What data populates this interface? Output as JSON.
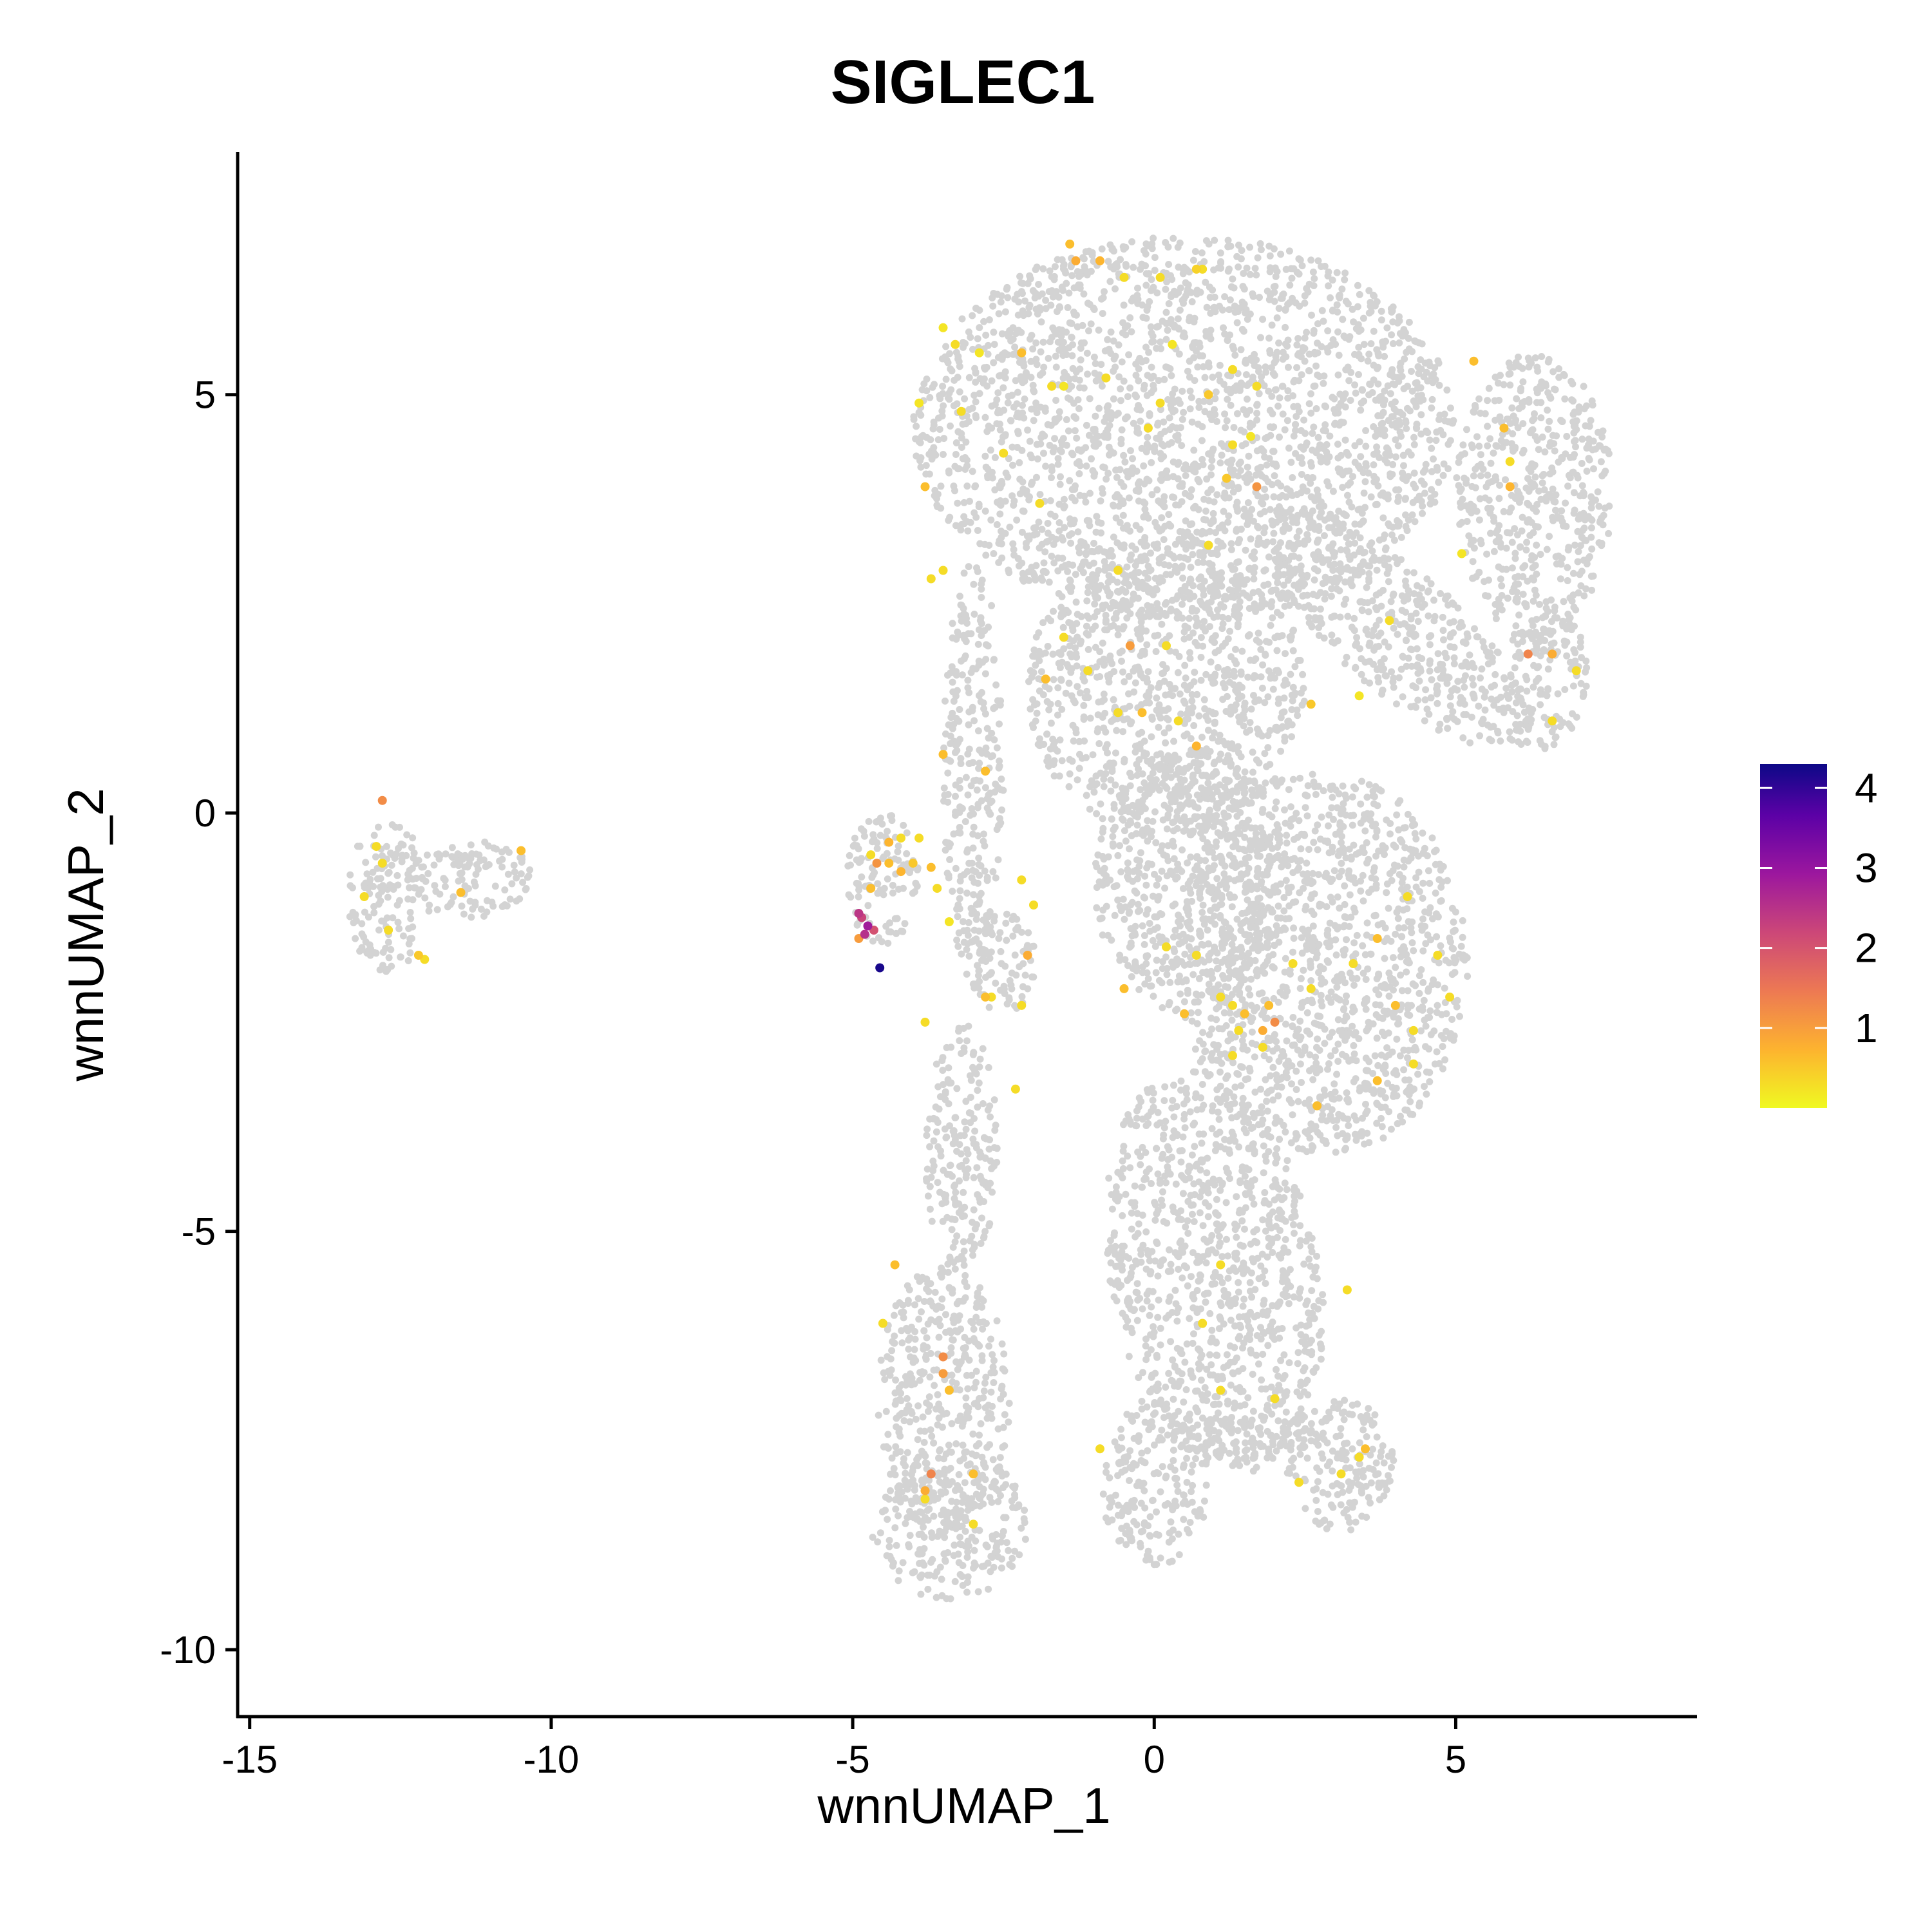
{
  "chart_data": {
    "type": "scatter",
    "title": "SIGLEC1",
    "xlabel": "wnnUMAP_1",
    "ylabel": "wnnUMAP_2",
    "xlim": [
      -15.2,
      9.0
    ],
    "ylim": [
      -10.8,
      7.9
    ],
    "x_ticks": [
      -15,
      -10,
      -5,
      0,
      5
    ],
    "x_tick_labels": [
      "-15",
      "-10",
      "-5",
      "0",
      "5"
    ],
    "y_ticks": [
      -10,
      -5,
      0,
      5
    ],
    "y_tick_labels": [
      "-10",
      "-5",
      "0",
      "5"
    ],
    "grid": false,
    "background_color": "#d3d3d3",
    "colorbar": {
      "range": [
        0,
        4.3
      ],
      "ticks": [
        1,
        2,
        3,
        4
      ],
      "tick_labels": [
        "1",
        "2",
        "3",
        "4"
      ],
      "colors": [
        "#f0f921",
        "#fdb32f",
        "#ed7953",
        "#cc4778",
        "#9c179e",
        "#5c01a6",
        "#0d0887"
      ],
      "placement": "right"
    },
    "clusters": [
      {
        "cx": 0.5,
        "cy": 4.6,
        "rx": 4.5,
        "ry": 2.3
      },
      {
        "cx": 6.3,
        "cy": 3.8,
        "rx": 1.3,
        "ry": 1.7
      },
      {
        "cx": 4.0,
        "cy": 2.2,
        "rx": 2.6,
        "ry": 0.8,
        "rot": -30
      },
      {
        "cx": 6.5,
        "cy": 1.6,
        "rx": 0.7,
        "ry": 0.9
      },
      {
        "cx": 0.2,
        "cy": 1.5,
        "rx": 2.3,
        "ry": 1.8
      },
      {
        "cx": 2.8,
        "cy": -1.8,
        "rx": 2.4,
        "ry": 2.3
      },
      {
        "cx": 0.6,
        "cy": -0.8,
        "rx": 1.6,
        "ry": 1.6
      },
      {
        "cx": 1.0,
        "cy": -5.5,
        "rx": 1.7,
        "ry": 2.5,
        "rot": 20
      },
      {
        "cx": 0.0,
        "cy": -8.0,
        "rx": 0.9,
        "ry": 1.0
      },
      {
        "cx": -3.5,
        "cy": -7.0,
        "rx": 1.1,
        "ry": 1.6
      },
      {
        "cx": -3.4,
        "cy": -8.5,
        "rx": 1.3,
        "ry": 0.9
      },
      {
        "cx": 3.1,
        "cy": -7.8,
        "rx": 0.9,
        "ry": 0.8
      },
      {
        "cx": 1.5,
        "cy": -7.5,
        "rx": 1.3,
        "ry": 0.3
      },
      {
        "cx": -12.7,
        "cy": -1.0,
        "rx": 0.7,
        "ry": 0.9
      },
      {
        "cx": -11.3,
        "cy": -0.8,
        "rx": 1.0,
        "ry": 0.5
      },
      {
        "cx": -4.5,
        "cy": -0.8,
        "rx": 0.6,
        "ry": 0.8
      },
      {
        "cx": -2.5,
        "cy": -1.8,
        "rx": 0.6,
        "ry": 0.6
      },
      {
        "cx": -3.0,
        "cy": 0.5,
        "rx": 0.5,
        "ry": 2.5
      },
      {
        "cx": -3.2,
        "cy": -4.0,
        "rx": 0.6,
        "ry": 1.5
      }
    ],
    "points": [
      {
        "x": -1.4,
        "y": 6.8,
        "v": 0.6
      },
      {
        "x": -1.3,
        "y": 6.6,
        "v": 0.8
      },
      {
        "x": -0.9,
        "y": 6.6,
        "v": 0.7
      },
      {
        "x": -0.5,
        "y": 6.4,
        "v": 0.3
      },
      {
        "x": 0.1,
        "y": 6.4,
        "v": 0.3
      },
      {
        "x": 0.7,
        "y": 6.5,
        "v": 0.4
      },
      {
        "x": 0.8,
        "y": 6.5,
        "v": 0.3
      },
      {
        "x": -3.5,
        "y": 5.8,
        "v": 0.2
      },
      {
        "x": -3.3,
        "y": 5.6,
        "v": 0.3
      },
      {
        "x": -2.9,
        "y": 5.5,
        "v": 0.2
      },
      {
        "x": -2.2,
        "y": 5.5,
        "v": 0.6
      },
      {
        "x": 0.3,
        "y": 5.6,
        "v": 0.2
      },
      {
        "x": 1.3,
        "y": 5.3,
        "v": 0.3
      },
      {
        "x": 1.7,
        "y": 5.1,
        "v": 0.3
      },
      {
        "x": -1.7,
        "y": 5.1,
        "v": 0.3
      },
      {
        "x": -1.5,
        "y": 5.1,
        "v": 0.2
      },
      {
        "x": -0.8,
        "y": 5.2,
        "v": 0.3
      },
      {
        "x": 0.9,
        "y": 5.0,
        "v": 0.5
      },
      {
        "x": 0.1,
        "y": 4.9,
        "v": 0.3
      },
      {
        "x": -3.2,
        "y": 4.8,
        "v": 0.3
      },
      {
        "x": -3.9,
        "y": 4.9,
        "v": 0.2
      },
      {
        "x": -2.5,
        "y": 4.3,
        "v": 0.3
      },
      {
        "x": -0.1,
        "y": 4.6,
        "v": 0.3
      },
      {
        "x": 1.3,
        "y": 4.4,
        "v": 0.3
      },
      {
        "x": 1.6,
        "y": 4.5,
        "v": 0.2
      },
      {
        "x": 1.2,
        "y": 4.0,
        "v": 0.5
      },
      {
        "x": 1.7,
        "y": 3.9,
        "v": 1.1
      },
      {
        "x": -3.8,
        "y": 3.9,
        "v": 0.6
      },
      {
        "x": -1.9,
        "y": 3.7,
        "v": 0.3
      },
      {
        "x": 0.9,
        "y": 3.2,
        "v": 0.3
      },
      {
        "x": -3.5,
        "y": 2.9,
        "v": 0.3
      },
      {
        "x": -3.7,
        "y": 2.8,
        "v": 0.3
      },
      {
        "x": -0.6,
        "y": 2.9,
        "v": 0.3
      },
      {
        "x": 5.3,
        "y": 5.4,
        "v": 0.6
      },
      {
        "x": 5.8,
        "y": 4.6,
        "v": 0.6
      },
      {
        "x": 5.9,
        "y": 4.2,
        "v": 0.3
      },
      {
        "x": 5.9,
        "y": 3.9,
        "v": 0.7
      },
      {
        "x": 5.1,
        "y": 3.1,
        "v": 0.2
      },
      {
        "x": 3.9,
        "y": 2.3,
        "v": 0.3
      },
      {
        "x": 6.2,
        "y": 1.9,
        "v": 1.3
      },
      {
        "x": 6.6,
        "y": 1.9,
        "v": 0.8
      },
      {
        "x": 7.0,
        "y": 1.7,
        "v": 0.3
      },
      {
        "x": 6.6,
        "y": 1.1,
        "v": 0.3
      },
      {
        "x": 2.6,
        "y": 1.3,
        "v": 0.5
      },
      {
        "x": 3.4,
        "y": 1.4,
        "v": 0.2
      },
      {
        "x": -1.5,
        "y": 2.1,
        "v": 0.3
      },
      {
        "x": -0.4,
        "y": 2.0,
        "v": 1.0
      },
      {
        "x": 0.2,
        "y": 2.0,
        "v": 0.3
      },
      {
        "x": -1.8,
        "y": 1.6,
        "v": 0.6
      },
      {
        "x": -1.1,
        "y": 1.7,
        "v": 0.3
      },
      {
        "x": -0.6,
        "y": 1.2,
        "v": 0.3
      },
      {
        "x": -0.2,
        "y": 1.2,
        "v": 0.6
      },
      {
        "x": 0.4,
        "y": 1.1,
        "v": 0.3
      },
      {
        "x": 0.7,
        "y": 0.8,
        "v": 0.7
      },
      {
        "x": -3.5,
        "y": 0.7,
        "v": 0.6
      },
      {
        "x": -2.8,
        "y": 0.5,
        "v": 0.6
      },
      {
        "x": -4.2,
        "y": -0.3,
        "v": 0.3
      },
      {
        "x": -3.9,
        "y": -0.3,
        "v": 0.3
      },
      {
        "x": -4.4,
        "y": -0.35,
        "v": 0.7
      },
      {
        "x": -4.7,
        "y": -0.5,
        "v": 0.3
      },
      {
        "x": -4.6,
        "y": -0.6,
        "v": 1.1
      },
      {
        "x": -4.4,
        "y": -0.6,
        "v": 0.6
      },
      {
        "x": -4.0,
        "y": -0.6,
        "v": 0.5
      },
      {
        "x": -3.7,
        "y": -0.65,
        "v": 0.6
      },
      {
        "x": -4.2,
        "y": -0.7,
        "v": 0.7
      },
      {
        "x": -4.7,
        "y": -0.9,
        "v": 0.6
      },
      {
        "x": -3.6,
        "y": -0.9,
        "v": 0.3
      },
      {
        "x": -4.9,
        "y": -1.2,
        "v": 2.4
      },
      {
        "x": -4.85,
        "y": -1.25,
        "v": 2.2
      },
      {
        "x": -4.75,
        "y": -1.35,
        "v": 2.8
      },
      {
        "x": -4.65,
        "y": -1.4,
        "v": 2.0
      },
      {
        "x": -4.8,
        "y": -1.45,
        "v": 2.5
      },
      {
        "x": -4.9,
        "y": -1.5,
        "v": 1.0
      },
      {
        "x": -4.55,
        "y": -1.85,
        "v": 4.2
      },
      {
        "x": -3.4,
        "y": -1.3,
        "v": 0.2
      },
      {
        "x": -3.8,
        "y": -2.5,
        "v": 0.3
      },
      {
        "x": -12.8,
        "y": 0.15,
        "v": 1.2
      },
      {
        "x": -12.9,
        "y": -0.4,
        "v": 0.3
      },
      {
        "x": -12.8,
        "y": -0.6,
        "v": 0.3
      },
      {
        "x": -13.1,
        "y": -1.0,
        "v": 0.3
      },
      {
        "x": -12.7,
        "y": -1.4,
        "v": 0.3
      },
      {
        "x": -12.2,
        "y": -1.7,
        "v": 0.5
      },
      {
        "x": -12.1,
        "y": -1.75,
        "v": 0.3
      },
      {
        "x": -11.5,
        "y": -0.95,
        "v": 0.6
      },
      {
        "x": -10.5,
        "y": -0.45,
        "v": 0.6
      },
      {
        "x": -2.2,
        "y": -0.8,
        "v": 0.3
      },
      {
        "x": -2.0,
        "y": -1.1,
        "v": 0.3
      },
      {
        "x": -2.1,
        "y": -1.7,
        "v": 0.8
      },
      {
        "x": -2.8,
        "y": -2.2,
        "v": 0.6
      },
      {
        "x": -2.7,
        "y": -2.2,
        "v": 0.3
      },
      {
        "x": -2.2,
        "y": -2.3,
        "v": 0.3
      },
      {
        "x": -2.3,
        "y": -3.3,
        "v": 0.3
      },
      {
        "x": -0.5,
        "y": -2.1,
        "v": 0.6
      },
      {
        "x": 0.2,
        "y": -1.6,
        "v": 0.3
      },
      {
        "x": 0.7,
        "y": -1.7,
        "v": 0.3
      },
      {
        "x": 0.5,
        "y": -2.4,
        "v": 0.6
      },
      {
        "x": 1.1,
        "y": -2.2,
        "v": 0.3
      },
      {
        "x": 1.3,
        "y": -2.3,
        "v": 0.3
      },
      {
        "x": 1.5,
        "y": -2.4,
        "v": 0.6
      },
      {
        "x": 1.4,
        "y": -2.6,
        "v": 0.3
      },
      {
        "x": 1.9,
        "y": -2.3,
        "v": 0.6
      },
      {
        "x": 1.8,
        "y": -2.6,
        "v": 0.8
      },
      {
        "x": 2.0,
        "y": -2.5,
        "v": 1.2
      },
      {
        "x": 1.8,
        "y": -2.8,
        "v": 0.3
      },
      {
        "x": 2.3,
        "y": -1.8,
        "v": 0.3
      },
      {
        "x": 2.6,
        "y": -2.1,
        "v": 0.3
      },
      {
        "x": 3.3,
        "y": -1.8,
        "v": 0.3
      },
      {
        "x": 3.7,
        "y": -1.5,
        "v": 0.6
      },
      {
        "x": 4.2,
        "y": -1.0,
        "v": 0.3
      },
      {
        "x": 4.3,
        "y": -2.6,
        "v": 0.3
      },
      {
        "x": 4.0,
        "y": -2.3,
        "v": 0.6
      },
      {
        "x": 4.7,
        "y": -1.7,
        "v": 0.3
      },
      {
        "x": 4.9,
        "y": -2.2,
        "v": 0.3
      },
      {
        "x": 4.3,
        "y": -3.0,
        "v": 0.3
      },
      {
        "x": 3.7,
        "y": -3.2,
        "v": 0.6
      },
      {
        "x": 2.7,
        "y": -3.5,
        "v": 0.6
      },
      {
        "x": 1.3,
        "y": -2.9,
        "v": 0.3
      },
      {
        "x": 1.1,
        "y": -5.4,
        "v": 0.3
      },
      {
        "x": 0.8,
        "y": -6.1,
        "v": 0.3
      },
      {
        "x": 1.1,
        "y": -6.9,
        "v": 0.3
      },
      {
        "x": 2.0,
        "y": -7.0,
        "v": 0.3
      },
      {
        "x": -0.9,
        "y": -7.6,
        "v": 0.3
      },
      {
        "x": 3.2,
        "y": -5.7,
        "v": 0.3
      },
      {
        "x": 3.5,
        "y": -7.6,
        "v": 0.6
      },
      {
        "x": 3.4,
        "y": -7.7,
        "v": 0.3
      },
      {
        "x": 3.1,
        "y": -7.9,
        "v": 0.3
      },
      {
        "x": 2.4,
        "y": -8.0,
        "v": 0.3
      },
      {
        "x": -4.3,
        "y": -5.4,
        "v": 0.6
      },
      {
        "x": -4.5,
        "y": -6.1,
        "v": 0.3
      },
      {
        "x": -3.5,
        "y": -6.5,
        "v": 1.2
      },
      {
        "x": -3.5,
        "y": -6.7,
        "v": 1.0
      },
      {
        "x": -3.4,
        "y": -6.9,
        "v": 0.6
      },
      {
        "x": -3.7,
        "y": -7.9,
        "v": 1.3
      },
      {
        "x": -3.8,
        "y": -8.1,
        "v": 0.8
      },
      {
        "x": -3.8,
        "y": -8.2,
        "v": 0.3
      },
      {
        "x": -3.0,
        "y": -7.9,
        "v": 0.6
      },
      {
        "x": -3.0,
        "y": -8.5,
        "v": 0.3
      }
    ]
  }
}
